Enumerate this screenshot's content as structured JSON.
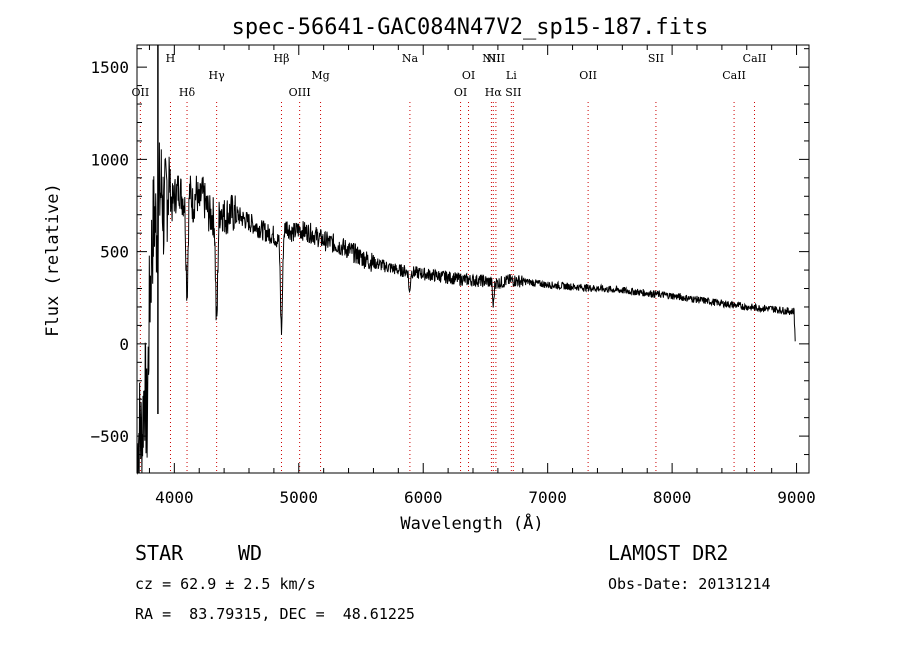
{
  "title": "spec-56641-GAC084N47V2_sp15-187.fits",
  "info": {
    "class_label": "STAR",
    "subclass_label": "WD",
    "survey": "LAMOST DR2",
    "cz": "cz = 62.9 ± 2.5 km/s",
    "obs_date": "Obs-Date: 20131214",
    "coords": "RA =  83.79315, DEC =  48.61225"
  },
  "chart_data": {
    "type": "line",
    "title": "spec-56641-GAC084N47V2_sp15-187.fits",
    "xlabel": "Wavelength (Å)",
    "ylabel": "Flux (relative)",
    "xlim": [
      3700,
      9100
    ],
    "ylim": [
      -700,
      1620
    ],
    "x_ticks": [
      4000,
      5000,
      6000,
      7000,
      8000,
      9000
    ],
    "y_ticks": [
      -500,
      0,
      500,
      1000,
      1500
    ],
    "grid": false,
    "line_color": "#000000",
    "marker_color": "#cc0000",
    "spectral_lines": [
      {
        "label": "OII",
        "x": 3727,
        "row": "low"
      },
      {
        "label": "H",
        "x": 3969,
        "row": "top"
      },
      {
        "label": "Hδ",
        "x": 4102,
        "row": "low"
      },
      {
        "label": "Hγ",
        "x": 4340,
        "row": "mid"
      },
      {
        "label": "Hβ",
        "x": 4861,
        "row": "top"
      },
      {
        "label": "OIII",
        "x": 5007,
        "row": "low"
      },
      {
        "label": "Mg",
        "x": 5175,
        "row": "mid"
      },
      {
        "label": "Na",
        "x": 5893,
        "row": "top"
      },
      {
        "label": "OI",
        "x": 6300,
        "row": "low"
      },
      {
        "label": "OI",
        "x": 6364,
        "row": "mid"
      },
      {
        "label": "NII",
        "x": 6548,
        "row": "top"
      },
      {
        "label": "Hα",
        "x": 6563,
        "row": "low"
      },
      {
        "label": "NII",
        "x": 6584,
        "row": "top"
      },
      {
        "label": "Li",
        "x": 6708,
        "row": "mid"
      },
      {
        "label": "SII",
        "x": 6724,
        "row": "low"
      },
      {
        "label": "OII",
        "x": 7325,
        "row": "mid"
      },
      {
        "label": "SII",
        "x": 7870,
        "row": "top"
      },
      {
        "label": "CaII",
        "x": 8498,
        "row": "mid"
      },
      {
        "label": "CaII",
        "x": 8662,
        "row": "top"
      }
    ],
    "absorption_features": [
      {
        "x": 4102,
        "depth": 520
      },
      {
        "x": 4340,
        "depth": 600
      },
      {
        "x": 4861,
        "depth": 520
      },
      {
        "x": 5890,
        "depth": 120
      },
      {
        "x": 6563,
        "depth": 130
      }
    ],
    "series": [
      {
        "x": [
          3700,
          3720,
          3740,
          3760,
          3780,
          3800,
          3820,
          3840,
          3860,
          3880,
          3900,
          3920,
          3940,
          3960,
          3980,
          4000,
          4020,
          4040,
          4060,
          4080,
          4120,
          4150,
          4180,
          4200,
          4220,
          4250,
          4280,
          4300,
          4380,
          4400,
          4450,
          4500,
          4550,
          4600,
          4650,
          4700,
          4750,
          4800,
          4830,
          4900,
          4950,
          5000,
          5100,
          5200,
          5300,
          5400,
          5500,
          5600,
          5700,
          5800,
          5900,
          6000,
          6100,
          6200,
          6300,
          6400,
          6500,
          6600,
          6700,
          6800,
          6900,
          7000,
          7200,
          7400,
          7600,
          7800,
          8000,
          8200,
          8400,
          8600,
          8800,
          8960,
          8980,
          8990
        ],
        "y": [
          -600,
          -450,
          -520,
          -200,
          -450,
          200,
          550,
          700,
          600,
          800,
          850,
          650,
          850,
          900,
          750,
          800,
          820,
          850,
          800,
          780,
          850,
          750,
          830,
          740,
          820,
          760,
          700,
          690,
          730,
          690,
          710,
          700,
          680,
          660,
          640,
          620,
          600,
          590,
          560,
          640,
          600,
          620,
          600,
          560,
          540,
          510,
          470,
          440,
          420,
          400,
          390,
          380,
          370,
          360,
          350,
          345,
          340,
          330,
          345,
          340,
          330,
          320,
          310,
          300,
          290,
          275,
          260,
          240,
          220,
          200,
          190,
          175,
          180,
          0
        ]
      }
    ]
  }
}
